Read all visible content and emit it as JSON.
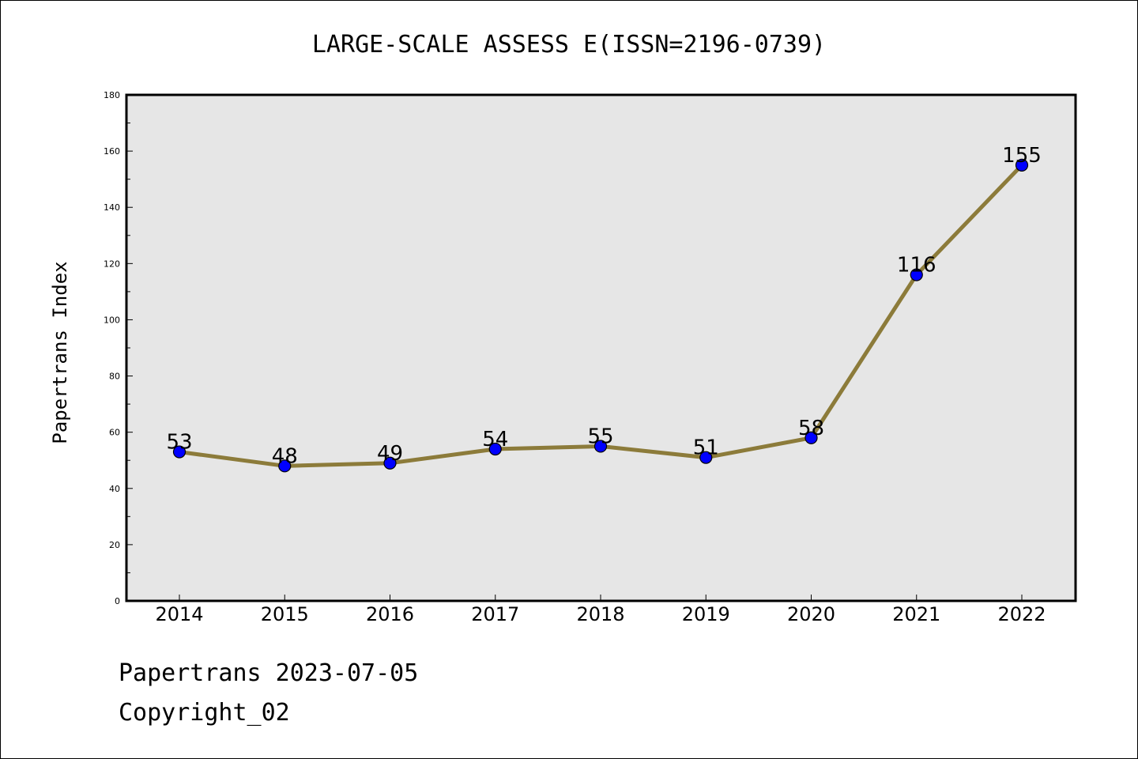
{
  "chart_data": {
    "type": "line",
    "title": "LARGE-SCALE ASSESS E(ISSN=2196-0739)",
    "xlabel": "",
    "ylabel": "Papertrans Index",
    "categories": [
      "2014",
      "2015",
      "2016",
      "2017",
      "2018",
      "2019",
      "2020",
      "2021",
      "2022"
    ],
    "series": [
      {
        "values": [
          53,
          48,
          49,
          54,
          55,
          51,
          58,
          116,
          155
        ]
      }
    ],
    "data_labels": [
      "53",
      "48",
      "49",
      "54",
      "55",
      "51",
      "58",
      "116",
      "155"
    ],
    "ylim": [
      0,
      180
    ],
    "yticks": [
      0,
      20,
      40,
      60,
      80,
      100,
      120,
      140,
      160,
      180
    ],
    "grid": false,
    "line_color": "#8c7b3a",
    "marker_color": "#0000ff",
    "plot_background": "#e6e6e6"
  },
  "footer": {
    "source": "Papertrans 2023-07-05",
    "copyright": "Copyright_02"
  }
}
